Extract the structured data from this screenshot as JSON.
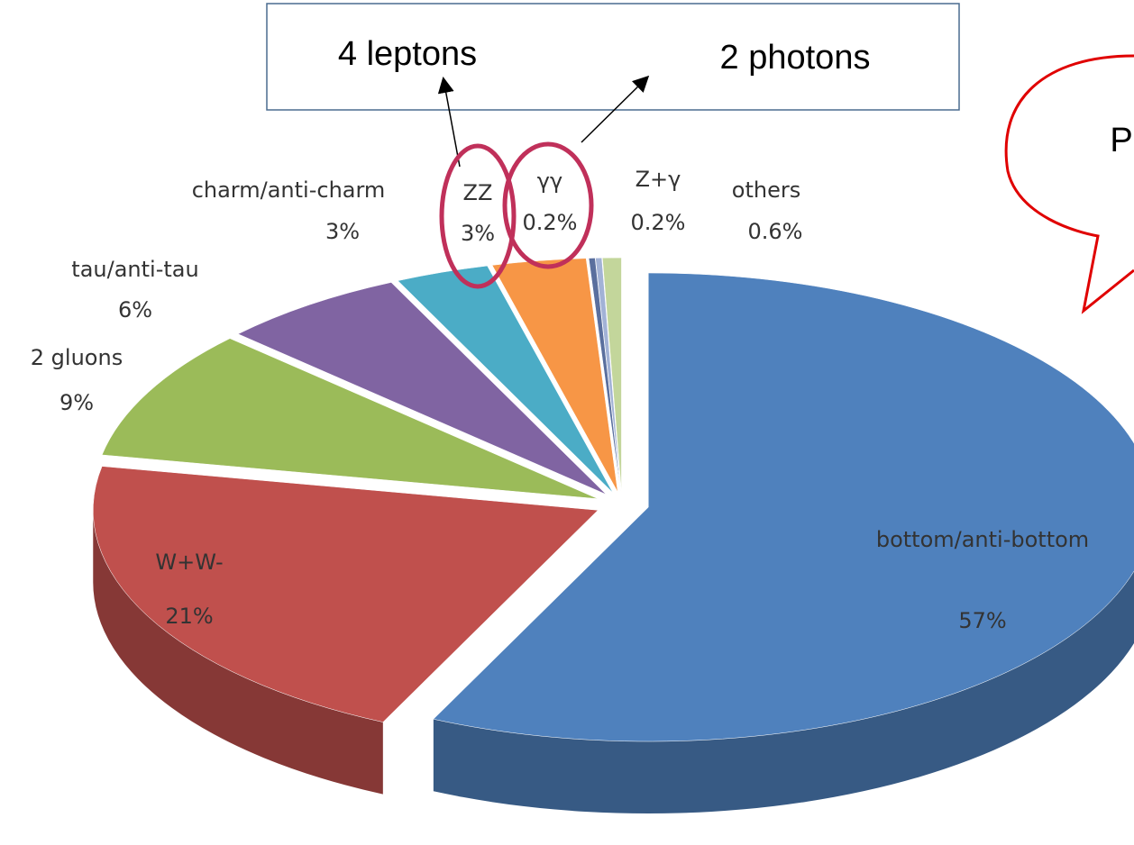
{
  "chart_data": {
    "type": "pie",
    "categories": [
      "bottom/anti-bottom",
      "W+W-",
      "2 gluons",
      "tau/anti-tau",
      "charm/anti-charm",
      "ZZ",
      "γγ",
      "Z+γ",
      "others"
    ],
    "values": [
      57,
      21,
      9,
      6,
      3,
      3,
      0.2,
      0.2,
      0.6
    ],
    "value_labels": [
      "57%",
      "21%",
      "9%",
      "6%",
      "3%",
      "3%",
      "0.2%",
      "0.2%",
      "0.6%"
    ],
    "colors": [
      "#4f81bd",
      "#c0504d",
      "#9bbb59",
      "#8064a2",
      "#4bacc6",
      "#f79646",
      "#5a6f9e",
      "#a2b2d6",
      "#c3d69b"
    ],
    "annotations": [
      "4 leptons",
      "2 photons",
      "P"
    ]
  }
}
